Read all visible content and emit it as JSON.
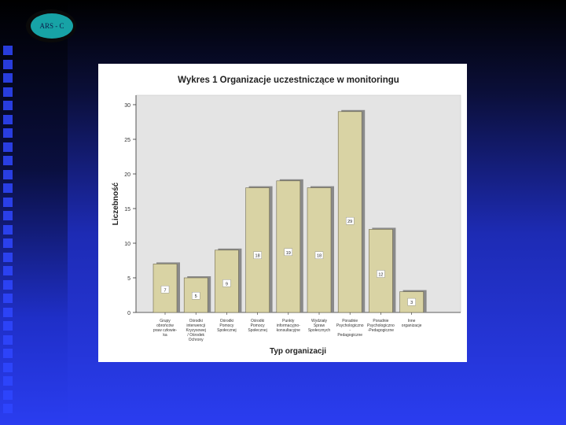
{
  "logo": {
    "text": "ARS - C"
  },
  "chart_data": {
    "type": "bar",
    "title": "Wykres 1 Organizacje uczestniczące w monitoringu",
    "xlabel": "Typ organizacji",
    "ylabel": "Liczebność",
    "ylim": [
      0,
      30
    ],
    "yticks": [
      0,
      5,
      10,
      15,
      20,
      25,
      30
    ],
    "categories": [
      [
        "Grupy",
        "obrońców",
        "praw człowie-",
        "ka"
      ],
      [
        "Ośrodki",
        "interwencji",
        "Kryzysowej",
        "/ Ośrodek",
        "Ochrony"
      ],
      [
        "Ośrodki",
        "Pomocy",
        "Społecznej"
      ],
      [
        "Ośrodki",
        "Pomocy",
        "Społecznej"
      ],
      [
        "Punkty",
        "informacyjno-",
        "konsultacyjne"
      ],
      [
        "Wydziały",
        "Spraw",
        "Społecznych"
      ],
      [
        "Poradnie",
        "Psychologiczno",
        "-",
        "Pedagogiczne"
      ],
      [
        "Poradnie",
        "Psychologiczno",
        "-Pedagogiczne"
      ],
      [
        "Inne",
        "organizacje"
      ]
    ],
    "values": [
      7,
      5,
      9,
      18,
      19,
      18,
      29,
      12,
      3
    ],
    "data_labels": [
      "7",
      "5",
      "9",
      "18",
      "19",
      "18",
      "29",
      "12",
      "3"
    ],
    "bar_color": "#d9d3a4",
    "grid": false
  }
}
